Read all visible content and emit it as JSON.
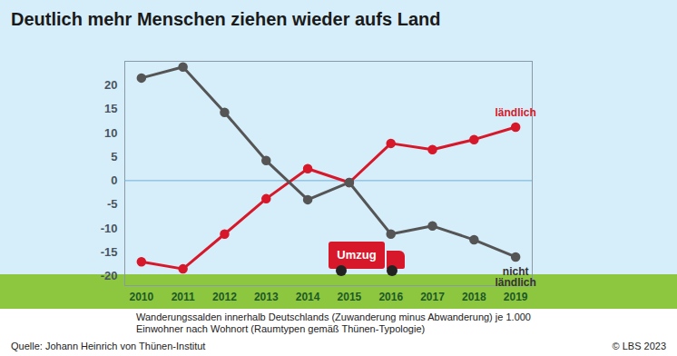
{
  "chart_data": {
    "type": "line",
    "title": "Deutlich mehr Menschen ziehen wieder aufs Land",
    "caption": "Wanderungssalden innerhalb Deutschlands (Zuwanderung minus Abwanderung) je 1.000 Einwohner nach Wohnort (Raumtypen gemäß Thünen-Typologie)",
    "source": "Quelle: Johann Heinrich von Thünen-Institut",
    "credit": "© LBS 2023",
    "annotations": [
      "Umzug"
    ],
    "x": [
      2010,
      2011,
      2012,
      2013,
      2014,
      2015,
      2016,
      2017,
      2018,
      2019
    ],
    "xlim": [
      2009.6,
      2019.4
    ],
    "xticks": [
      2010,
      2011,
      2012,
      2013,
      2014,
      2015,
      2016,
      2017,
      2018,
      2019
    ],
    "ylim": [
      -22,
      25
    ],
    "yticks": [
      -20,
      -15,
      -10,
      -5,
      0,
      5,
      10,
      15,
      20
    ],
    "series": [
      {
        "name": "ländlich",
        "color": "#d7182a",
        "marker": "circle",
        "values": [
          -17,
          -18.5,
          -11.2,
          -3.8,
          2.5,
          -0.4,
          7.8,
          6.5,
          8.6,
          11.2
        ]
      },
      {
        "name": "nicht ländlich",
        "color": "#555555",
        "marker": "circle",
        "values": [
          21.5,
          23.8,
          14.3,
          4.2,
          -4.0,
          -0.4,
          -11.2,
          -9.5,
          -12.4,
          -16
        ]
      }
    ]
  }
}
